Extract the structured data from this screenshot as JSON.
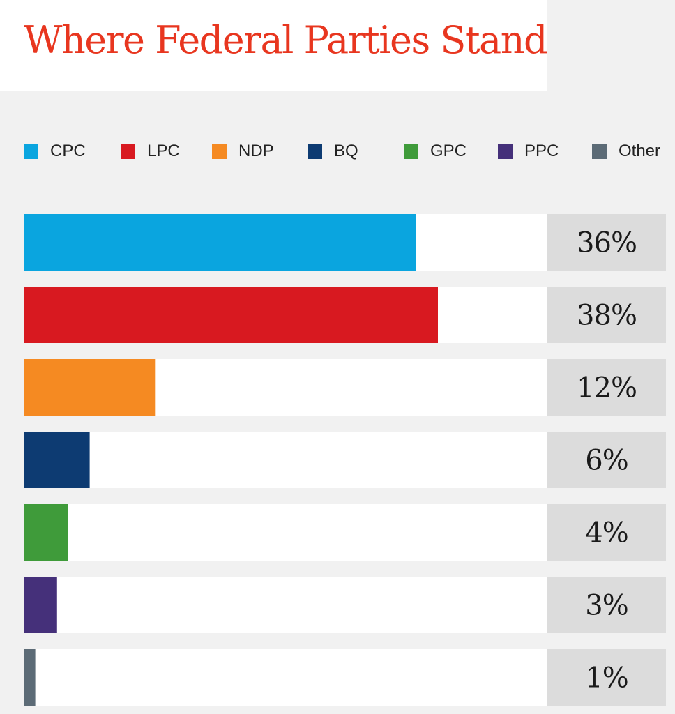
{
  "chart_data": {
    "type": "bar",
    "orientation": "horizontal",
    "title": "Where Federal Parties Stand",
    "legend_position": "top",
    "categories": [
      "CPC",
      "LPC",
      "NDP",
      "BQ",
      "GPC",
      "PPC",
      "Other"
    ],
    "values": [
      36,
      38,
      12,
      6,
      4,
      3,
      1
    ],
    "value_labels": [
      "36%",
      "38%",
      "12%",
      "6%",
      "4%",
      "3%",
      "1%"
    ],
    "colors": [
      "#0aa5df",
      "#d81920",
      "#f58a22",
      "#0d3b72",
      "#3f9b3a",
      "#45307a",
      "#5c6b76"
    ],
    "xlim": [
      0,
      48
    ]
  }
}
